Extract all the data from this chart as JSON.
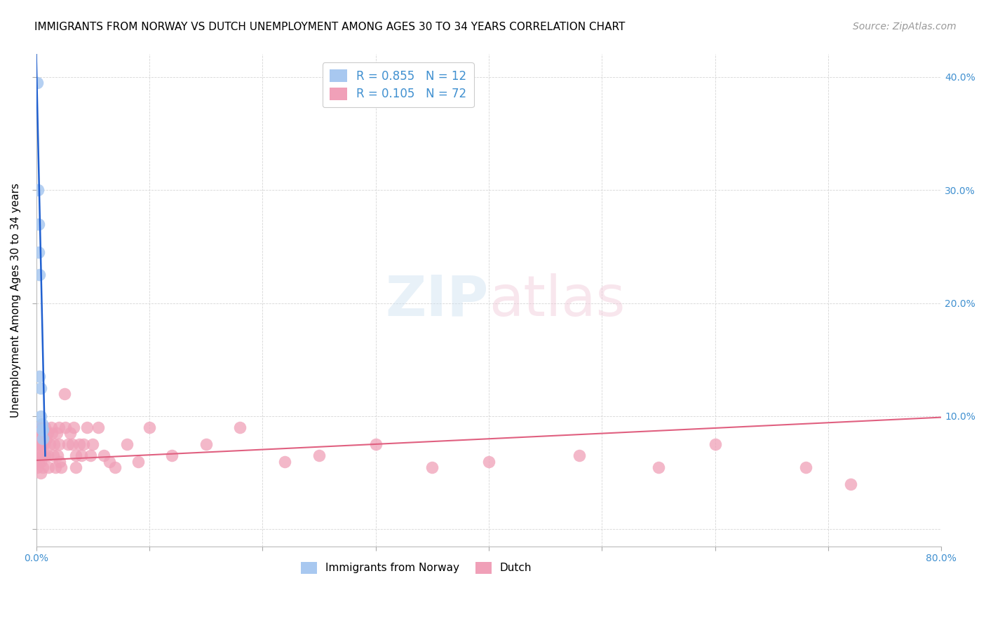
{
  "title": "IMMIGRANTS FROM NORWAY VS DUTCH UNEMPLOYMENT AMONG AGES 30 TO 34 YEARS CORRELATION CHART",
  "source": "Source: ZipAtlas.com",
  "xlabel": "",
  "ylabel": "Unemployment Among Ages 30 to 34 years",
  "xlim": [
    0.0,
    0.8
  ],
  "ylim": [
    -0.015,
    0.42
  ],
  "xticks": [
    0.0,
    0.1,
    0.2,
    0.3,
    0.4,
    0.5,
    0.6,
    0.7,
    0.8
  ],
  "xticklabels": [
    "0.0%",
    "",
    "",
    "",
    "",
    "",
    "",
    "",
    "80.0%"
  ],
  "yticks": [
    0.0,
    0.1,
    0.2,
    0.3,
    0.4
  ],
  "norway_color": "#a8c8f0",
  "dutch_color": "#f0a0b8",
  "norway_line_color": "#2060d0",
  "dutch_line_color": "#e06080",
  "background_color": "#ffffff",
  "watermark": "ZIPatlas",
  "title_fontsize": 11,
  "axis_label_fontsize": 11,
  "tick_fontsize": 10,
  "source_fontsize": 10,
  "legend_label_norway": "R = 0.855   N = 12",
  "legend_label_dutch": "R = 0.105   N = 72",
  "bottom_legend_norway": "Immigrants from Norway",
  "bottom_legend_dutch": "Dutch",
  "norway_points_x": [
    0.001,
    0.0015,
    0.002,
    0.002,
    0.003,
    0.003,
    0.004,
    0.004,
    0.005,
    0.005,
    0.006,
    0.006
  ],
  "norway_points_y": [
    0.395,
    0.3,
    0.27,
    0.245,
    0.225,
    0.135,
    0.125,
    0.1,
    0.093,
    0.088,
    0.088,
    0.08
  ],
  "dutch_points_x": [
    0.001,
    0.001,
    0.001,
    0.002,
    0.002,
    0.002,
    0.003,
    0.003,
    0.003,
    0.003,
    0.004,
    0.004,
    0.004,
    0.004,
    0.005,
    0.005,
    0.005,
    0.006,
    0.006,
    0.007,
    0.008,
    0.008,
    0.009,
    0.01,
    0.01,
    0.011,
    0.012,
    0.013,
    0.014,
    0.015,
    0.016,
    0.017,
    0.018,
    0.019,
    0.02,
    0.02,
    0.021,
    0.022,
    0.025,
    0.026,
    0.028,
    0.03,
    0.032,
    0.033,
    0.035,
    0.035,
    0.038,
    0.04,
    0.042,
    0.045,
    0.048,
    0.05,
    0.055,
    0.06,
    0.065,
    0.07,
    0.08,
    0.09,
    0.1,
    0.12,
    0.15,
    0.18,
    0.22,
    0.25,
    0.3,
    0.35,
    0.4,
    0.48,
    0.55,
    0.6,
    0.68,
    0.72
  ],
  "dutch_points_y": [
    0.075,
    0.065,
    0.055,
    0.085,
    0.075,
    0.06,
    0.09,
    0.08,
    0.075,
    0.065,
    0.085,
    0.075,
    0.06,
    0.05,
    0.09,
    0.075,
    0.065,
    0.085,
    0.055,
    0.075,
    0.09,
    0.065,
    0.08,
    0.085,
    0.065,
    0.055,
    0.075,
    0.09,
    0.085,
    0.065,
    0.075,
    0.055,
    0.085,
    0.065,
    0.09,
    0.075,
    0.06,
    0.055,
    0.12,
    0.09,
    0.075,
    0.085,
    0.075,
    0.09,
    0.065,
    0.055,
    0.075,
    0.065,
    0.075,
    0.09,
    0.065,
    0.075,
    0.09,
    0.065,
    0.06,
    0.055,
    0.075,
    0.06,
    0.09,
    0.065,
    0.075,
    0.09,
    0.06,
    0.065,
    0.075,
    0.055,
    0.06,
    0.065,
    0.055,
    0.075,
    0.055,
    0.04
  ],
  "dutch_trend_x0": 0.0,
  "dutch_trend_y0": 0.061,
  "dutch_trend_x1": 0.8,
  "dutch_trend_y1": 0.099,
  "norway_trend_x0": 0.0,
  "norway_trend_y0": 0.42,
  "norway_trend_x1": 0.008,
  "norway_trend_y1": 0.065
}
